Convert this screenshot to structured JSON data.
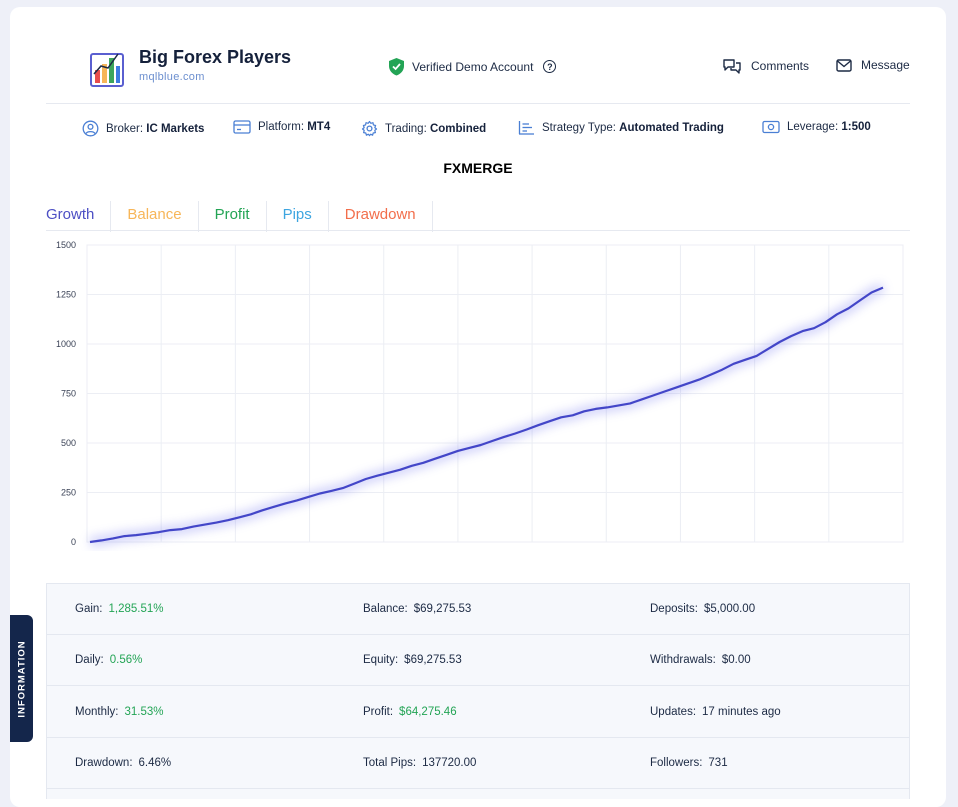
{
  "header": {
    "title": "Big Forex Players",
    "url": "mqlblue.com",
    "verified_label": "Verified Demo Account",
    "comments_label": "Comments",
    "message_label": "Message"
  },
  "meta": [
    {
      "label": "Broker:",
      "value": "IC Markets",
      "icon": "user-circle-icon"
    },
    {
      "label": "Platform:",
      "value": "MT4",
      "icon": "credit-card-icon"
    },
    {
      "label": "Trading:",
      "value": "Combined",
      "icon": "gear-icon"
    },
    {
      "label": "Strategy Type:",
      "value": "Automated Trading",
      "icon": "bar-list-icon"
    },
    {
      "label": "Leverage:",
      "value": "1:500",
      "icon": "banknote-icon"
    }
  ],
  "system_name": "FXMERGE",
  "tabs": [
    {
      "label": "Growth",
      "color": "#4c4fc4"
    },
    {
      "label": "Balance",
      "color": "#f7b659"
    },
    {
      "label": "Profit",
      "color": "#23a455"
    },
    {
      "label": "Pips",
      "color": "#3da5e0"
    },
    {
      "label": "Drawdown",
      "color": "#f26e4b"
    }
  ],
  "chart_data": {
    "type": "line",
    "ylim": [
      0,
      1500
    ],
    "yticks": [
      "0",
      "250",
      "500",
      "750",
      "1000",
      "1250",
      "1500"
    ],
    "series": [
      {
        "color": "#4346c8",
        "values": [
          0,
          8,
          18,
          30,
          35,
          42,
          50,
          60,
          65,
          78,
          88,
          98,
          110,
          125,
          140,
          160,
          178,
          195,
          210,
          228,
          245,
          258,
          272,
          295,
          318,
          335,
          350,
          365,
          385,
          400,
          420,
          440,
          460,
          475,
          490,
          510,
          530,
          548,
          568,
          590,
          610,
          630,
          640,
          660,
          672,
          680,
          690,
          700,
          720,
          740,
          760,
          780,
          800,
          820,
          845,
          870,
          900,
          920,
          940,
          975,
          1010,
          1040,
          1065,
          1080,
          1110,
          1150,
          1180,
          1220,
          1260,
          1285
        ]
      }
    ]
  },
  "info": {
    "side_label": "INFORMATION",
    "rows": [
      [
        {
          "label": "Gain:",
          "value": "1,285.51%",
          "green": true
        },
        {
          "label": "Balance:",
          "value": "$69,275.53",
          "green": false
        },
        {
          "label": "Deposits:",
          "value": "$5,000.00",
          "green": false
        }
      ],
      [
        {
          "label": "Daily:",
          "value": "0.56%",
          "green": true
        },
        {
          "label": "Equity:",
          "value": "$69,275.53",
          "green": false
        },
        {
          "label": "Withdrawals:",
          "value": "$0.00",
          "green": false
        }
      ],
      [
        {
          "label": "Monthly:",
          "value": "31.53%",
          "green": true
        },
        {
          "label": "Profit:",
          "value": "$64,275.46",
          "green": true
        },
        {
          "label": "Updates:",
          "value": "17 minutes ago",
          "green": false
        }
      ],
      [
        {
          "label": "Drawdown:",
          "value": "6.46%",
          "green": false
        },
        {
          "label": "Total Pips:",
          "value": "137720.00",
          "green": false
        },
        {
          "label": "Followers:",
          "value": "731",
          "green": false
        }
      ]
    ]
  }
}
